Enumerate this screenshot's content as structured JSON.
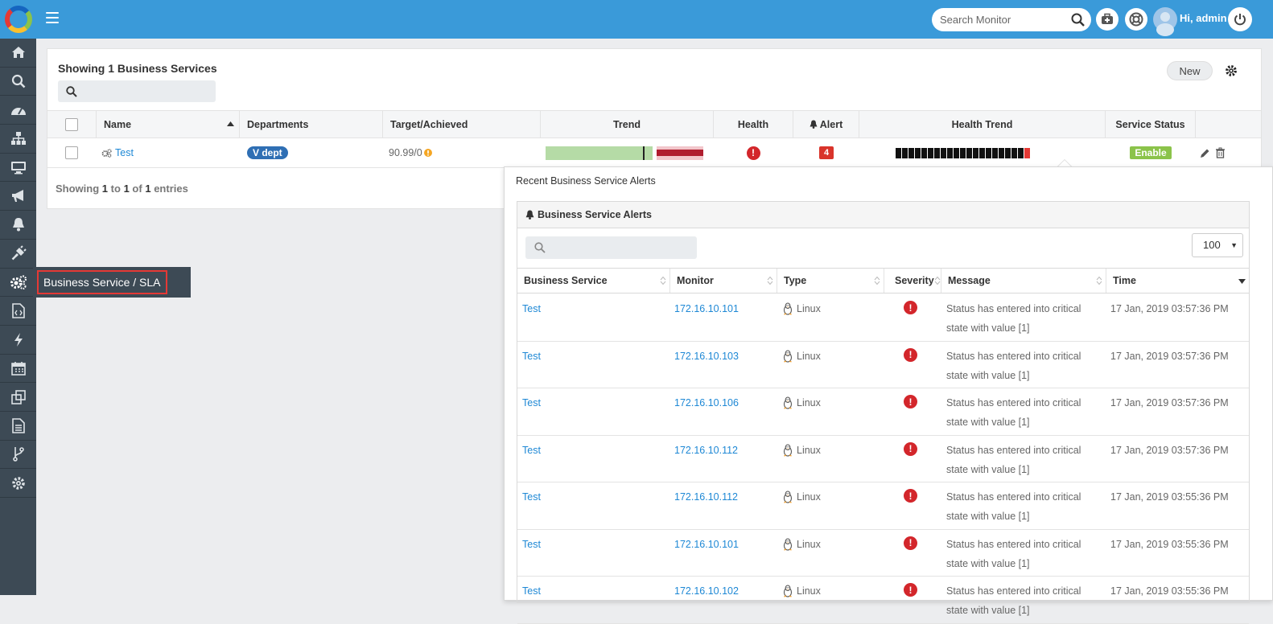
{
  "header": {
    "search_placeholder": "Search Monitor",
    "greeting": "Hi, admin"
  },
  "sidebar": {
    "items": [
      "home-icon",
      "search-icon",
      "dashboard-icon",
      "sitemap-icon",
      "desktop-icon",
      "bullhorn-icon",
      "bell-icon",
      "plug-icon",
      "cogs-icon",
      "code-file-icon",
      "bolt-icon",
      "calendar-icon",
      "clone-icon",
      "report-icon",
      "branch-icon",
      "gear-icon"
    ],
    "tooltip": "Business Service / SLA"
  },
  "panel": {
    "title": "Showing 1 Business Services",
    "new_label": "New",
    "columns": {
      "name": "Name",
      "departments": "Departments",
      "target": "Target/Achieved",
      "trend": "Trend",
      "health": "Health",
      "alert": "Alert",
      "health_trend": "Health Trend",
      "service_status": "Service Status"
    },
    "row": {
      "name": "Test",
      "department": "V dept",
      "target": "90.99/0",
      "alert_count": "4",
      "status": "Enable",
      "health_trend_ok": 20,
      "health_trend_critical": 1
    },
    "footer": {
      "prefix": "Showing",
      "from": "1",
      "to_word": "to",
      "to": "1",
      "of_word": "of",
      "total": "1",
      "suffix": "entries"
    }
  },
  "popup": {
    "title": "Recent Business Service Alerts",
    "inner_title": "Business Service Alerts",
    "page_size": "100",
    "columns": {
      "service": "Business Service",
      "monitor": "Monitor",
      "type": "Type",
      "severity": "Severity",
      "message": "Message",
      "time": "Time"
    },
    "rows": [
      {
        "service": "Test",
        "monitor": "172.16.10.101",
        "type": "Linux",
        "message": "Status has entered into critical state with value [1]",
        "time": "17 Jan, 2019 03:57:36 PM"
      },
      {
        "service": "Test",
        "monitor": "172.16.10.103",
        "type": "Linux",
        "message": "Status has entered into critical state with value [1]",
        "time": "17 Jan, 2019 03:57:36 PM"
      },
      {
        "service": "Test",
        "monitor": "172.16.10.106",
        "type": "Linux",
        "message": "Status has entered into critical state with value [1]",
        "time": "17 Jan, 2019 03:57:36 PM"
      },
      {
        "service": "Test",
        "monitor": "172.16.10.112",
        "type": "Linux",
        "message": "Status has entered into critical state with value [1]",
        "time": "17 Jan, 2019 03:57:36 PM"
      },
      {
        "service": "Test",
        "monitor": "172.16.10.112",
        "type": "Linux",
        "message": "Status has entered into critical state with value [1]",
        "time": "17 Jan, 2019 03:55:36 PM"
      },
      {
        "service": "Test",
        "monitor": "172.16.10.101",
        "type": "Linux",
        "message": "Status has entered into critical state with value [1]",
        "time": "17 Jan, 2019 03:55:36 PM"
      },
      {
        "service": "Test",
        "monitor": "172.16.10.102",
        "type": "Linux",
        "message": "Status has entered into critical state with value [1]",
        "time": "17 Jan, 2019 03:55:36 PM"
      }
    ]
  },
  "colors": {
    "topbar": "#3a9ad9",
    "sidebar": "#3d4a55",
    "link": "#1e88d5",
    "critical": "#d3262b",
    "enable": "#8bc34a"
  }
}
